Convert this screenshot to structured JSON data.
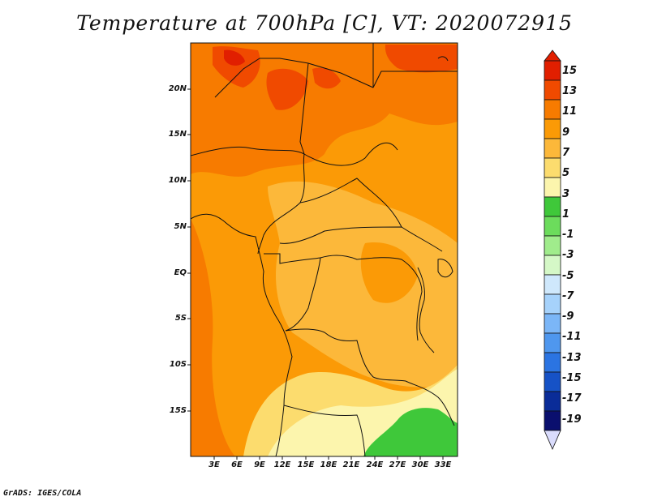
{
  "title": "Temperature at 700hPa [C], VT: 2020072915",
  "credit": "GrADS: IGES/COLA",
  "map": {
    "lat_labels": [
      "20N",
      "15N",
      "10N",
      "5N",
      "EQ",
      "5S",
      "10S",
      "15S"
    ],
    "lon_labels": [
      "3E",
      "6E",
      "9E",
      "12E",
      "15E",
      "18E",
      "21E",
      "24E",
      "27E",
      "30E",
      "33E"
    ]
  },
  "colorbar": {
    "labels": [
      "15",
      "13",
      "11",
      "9",
      "7",
      "5",
      "3",
      "1",
      "-1",
      "-3",
      "-5",
      "-7",
      "-9",
      "-11",
      "-13",
      "-15",
      "-17",
      "-19"
    ],
    "colors": [
      "#e11f00",
      "#f04a00",
      "#f77b00",
      "#fb9a06",
      "#fcb83a",
      "#fcdc6e",
      "#fcf5ad",
      "#3fc83a",
      "#6cdc5c",
      "#a0ec8c",
      "#d5f8c7",
      "#cfe8fc",
      "#a6d2fb",
      "#7bb6f7",
      "#4f97ee",
      "#2b74e2",
      "#1652c6",
      "#0a2c98",
      "#0a0f6e"
    ]
  }
}
